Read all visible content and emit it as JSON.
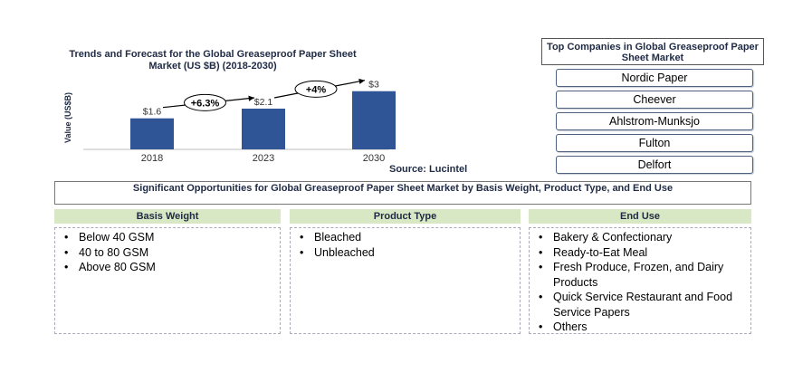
{
  "chart_data": {
    "type": "bar",
    "title": "Trends and Forecast for the Global Greaseproof Paper Sheet Market (US $B) (2018-2030)",
    "ylabel": "Value (US$B)",
    "categories": [
      "2018",
      "2023",
      "2030"
    ],
    "values": [
      1.6,
      2.1,
      3
    ],
    "data_labels": [
      "$1.6",
      "$2.1",
      "$3"
    ],
    "ylim": [
      0,
      3.5
    ],
    "bar_color": "#2f5597",
    "growth_annotations": [
      {
        "label": "+6.3%",
        "from": "2018",
        "to": "2023"
      },
      {
        "label": "+4%",
        "from": "2023",
        "to": "2030"
      }
    ],
    "source": "Source: Lucintel"
  },
  "companies": {
    "title": "Top Companies in Global Greaseproof Paper Sheet Market",
    "items": [
      "Nordic Paper",
      "Cheever",
      "Ahlstrom-Munksjo",
      "Fulton",
      "Delfort"
    ]
  },
  "opportunities": {
    "title": "Significant Opportunities for Global Greaseproof Paper Sheet Market by Basis Weight, Product Type, and End Use",
    "bullet": "•",
    "columns": [
      {
        "heading": "Basis Weight",
        "items": [
          "Below 40 GSM",
          "40 to 80 GSM",
          "Above 80 GSM"
        ]
      },
      {
        "heading": "Product Type",
        "items": [
          "Bleached",
          "Unbleached"
        ]
      },
      {
        "heading": "End Use",
        "items": [
          "Bakery & Confectionary",
          "Ready-to-Eat Meal",
          "Fresh Produce, Frozen, and Dairy Products",
          "Quick Service Restaurant and Food Service Papers",
          "Others"
        ]
      }
    ]
  },
  "colors": {
    "header_fill": "#d9e8c4",
    "title_text": "#1f2a44"
  }
}
